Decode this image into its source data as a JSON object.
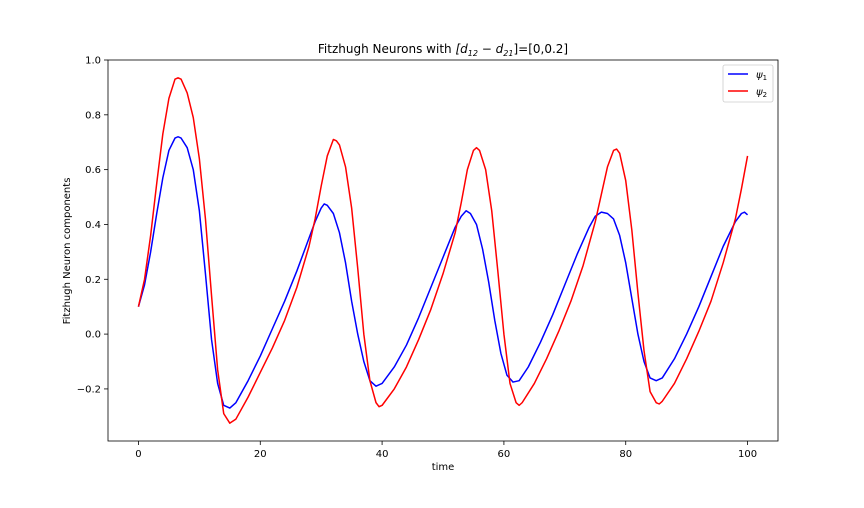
{
  "chart_data": {
    "type": "line",
    "title_parts": {
      "prefix": "Fitzhugh Neurons with ",
      "math_open": "[d",
      "sub1": "12",
      "minus": " − d",
      "sub2": "21",
      "math_close": "]",
      "suffix": "=[0,0.2]"
    },
    "xlabel": "time",
    "ylabel": "Fitzhugh Neuron components",
    "xlim": [
      -5,
      105
    ],
    "ylim": [
      -0.39,
      1.0
    ],
    "x_ticks": [
      0,
      20,
      40,
      60,
      80,
      100
    ],
    "y_ticks": [
      -0.2,
      0.0,
      0.2,
      0.4,
      0.6,
      0.8,
      1.0
    ],
    "y_tick_labels": [
      "−0.2",
      "0.0",
      "0.2",
      "0.4",
      "0.6",
      "0.8",
      "1.0"
    ],
    "grid": false,
    "legend_position": "top-right",
    "series": [
      {
        "name": "ψ1",
        "name_base": "ψ",
        "name_sub": "1",
        "color": "#0000ff",
        "points": [
          [
            0,
            0.1
          ],
          [
            1,
            0.18
          ],
          [
            2,
            0.3
          ],
          [
            3,
            0.44
          ],
          [
            4,
            0.57
          ],
          [
            5,
            0.67
          ],
          [
            6,
            0.715
          ],
          [
            6.5,
            0.72
          ],
          [
            7,
            0.715
          ],
          [
            8,
            0.68
          ],
          [
            9,
            0.6
          ],
          [
            10,
            0.45
          ],
          [
            11,
            0.22
          ],
          [
            12,
            -0.02
          ],
          [
            13,
            -0.18
          ],
          [
            14,
            -0.26
          ],
          [
            15,
            -0.27
          ],
          [
            16,
            -0.25
          ],
          [
            18,
            -0.17
          ],
          [
            20,
            -0.08
          ],
          [
            22,
            0.02
          ],
          [
            24,
            0.12
          ],
          [
            26,
            0.23
          ],
          [
            28,
            0.35
          ],
          [
            29,
            0.41
          ],
          [
            30,
            0.46
          ],
          [
            30.5,
            0.475
          ],
          [
            31,
            0.47
          ],
          [
            32,
            0.44
          ],
          [
            33,
            0.37
          ],
          [
            34,
            0.26
          ],
          [
            35,
            0.12
          ],
          [
            36,
            0.0
          ],
          [
            37,
            -0.1
          ],
          [
            38,
            -0.17
          ],
          [
            39,
            -0.19
          ],
          [
            40,
            -0.18
          ],
          [
            42,
            -0.12
          ],
          [
            44,
            -0.04
          ],
          [
            46,
            0.06
          ],
          [
            48,
            0.17
          ],
          [
            50,
            0.28
          ],
          [
            52,
            0.39
          ],
          [
            53,
            0.43
          ],
          [
            53.8,
            0.45
          ],
          [
            54.5,
            0.44
          ],
          [
            55.5,
            0.4
          ],
          [
            56.5,
            0.31
          ],
          [
            57.5,
            0.19
          ],
          [
            58.5,
            0.05
          ],
          [
            59.5,
            -0.07
          ],
          [
            60.5,
            -0.15
          ],
          [
            61.5,
            -0.175
          ],
          [
            62.5,
            -0.17
          ],
          [
            64,
            -0.12
          ],
          [
            66,
            -0.03
          ],
          [
            68,
            0.07
          ],
          [
            70,
            0.18
          ],
          [
            72,
            0.29
          ],
          [
            74,
            0.39
          ],
          [
            75,
            0.43
          ],
          [
            76,
            0.445
          ],
          [
            77,
            0.44
          ],
          [
            78,
            0.42
          ],
          [
            79,
            0.36
          ],
          [
            80,
            0.26
          ],
          [
            81,
            0.13
          ],
          [
            82,
            0.0
          ],
          [
            83,
            -0.1
          ],
          [
            84,
            -0.16
          ],
          [
            85,
            -0.17
          ],
          [
            86,
            -0.16
          ],
          [
            88,
            -0.09
          ],
          [
            90,
            0.0
          ],
          [
            92,
            0.1
          ],
          [
            94,
            0.21
          ],
          [
            96,
            0.32
          ],
          [
            98,
            0.41
          ],
          [
            99,
            0.44
          ],
          [
            99.5,
            0.445
          ],
          [
            100,
            0.435
          ]
        ]
      },
      {
        "name": "ψ2",
        "name_base": "ψ",
        "name_sub": "2",
        "color": "#ff0000",
        "points": [
          [
            0,
            0.1
          ],
          [
            1,
            0.2
          ],
          [
            2,
            0.36
          ],
          [
            3,
            0.55
          ],
          [
            4,
            0.73
          ],
          [
            5,
            0.86
          ],
          [
            6,
            0.93
          ],
          [
            6.5,
            0.935
          ],
          [
            7,
            0.93
          ],
          [
            8,
            0.88
          ],
          [
            9,
            0.79
          ],
          [
            10,
            0.64
          ],
          [
            11,
            0.42
          ],
          [
            12,
            0.14
          ],
          [
            13,
            -0.13
          ],
          [
            14,
            -0.29
          ],
          [
            15,
            -0.325
          ],
          [
            16,
            -0.31
          ],
          [
            18,
            -0.23
          ],
          [
            20,
            -0.14
          ],
          [
            22,
            -0.05
          ],
          [
            24,
            0.05
          ],
          [
            26,
            0.17
          ],
          [
            28,
            0.32
          ],
          [
            29,
            0.42
          ],
          [
            30,
            0.54
          ],
          [
            31,
            0.65
          ],
          [
            32,
            0.71
          ],
          [
            32.5,
            0.705
          ],
          [
            33,
            0.69
          ],
          [
            34,
            0.61
          ],
          [
            35,
            0.46
          ],
          [
            36,
            0.24
          ],
          [
            37,
            0.0
          ],
          [
            38,
            -0.17
          ],
          [
            39,
            -0.25
          ],
          [
            39.5,
            -0.265
          ],
          [
            40,
            -0.26
          ],
          [
            42,
            -0.2
          ],
          [
            44,
            -0.12
          ],
          [
            46,
            -0.02
          ],
          [
            48,
            0.09
          ],
          [
            50,
            0.22
          ],
          [
            52,
            0.37
          ],
          [
            53,
            0.48
          ],
          [
            54,
            0.6
          ],
          [
            55,
            0.67
          ],
          [
            55.5,
            0.68
          ],
          [
            56,
            0.67
          ],
          [
            57,
            0.6
          ],
          [
            58,
            0.45
          ],
          [
            59,
            0.23
          ],
          [
            60,
            0.0
          ],
          [
            61,
            -0.18
          ],
          [
            62,
            -0.25
          ],
          [
            62.5,
            -0.26
          ],
          [
            63,
            -0.25
          ],
          [
            65,
            -0.18
          ],
          [
            67,
            -0.09
          ],
          [
            69,
            0.01
          ],
          [
            71,
            0.12
          ],
          [
            73,
            0.25
          ],
          [
            75,
            0.41
          ],
          [
            76,
            0.51
          ],
          [
            77,
            0.61
          ],
          [
            78,
            0.67
          ],
          [
            78.5,
            0.675
          ],
          [
            79,
            0.66
          ],
          [
            80,
            0.56
          ],
          [
            81,
            0.38
          ],
          [
            82,
            0.15
          ],
          [
            83,
            -0.06
          ],
          [
            84,
            -0.21
          ],
          [
            85,
            -0.25
          ],
          [
            85.5,
            -0.255
          ],
          [
            86,
            -0.245
          ],
          [
            88,
            -0.18
          ],
          [
            90,
            -0.09
          ],
          [
            92,
            0.01
          ],
          [
            94,
            0.12
          ],
          [
            96,
            0.26
          ],
          [
            98,
            0.42
          ],
          [
            99,
            0.53
          ],
          [
            100,
            0.65
          ]
        ]
      }
    ]
  }
}
